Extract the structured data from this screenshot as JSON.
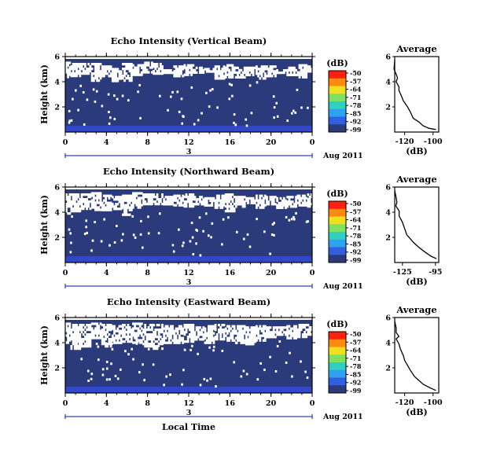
{
  "chart_data": [
    {
      "type": "heatmap",
      "title": "Echo Intensity (Vertical Beam)",
      "ylabel": "Height (km)",
      "yticks": [
        "2",
        "4",
        "6"
      ],
      "ylim": [
        0,
        6
      ],
      "xticks": [
        "0",
        "4",
        "8",
        "12",
        "16",
        "20",
        "0"
      ],
      "xlim": [
        0,
        24
      ],
      "day_label": "3",
      "date_label": "Aug 2011",
      "colorbar": {
        "unit": "(dB)",
        "ticks": [
          "-50",
          "-57",
          "-64",
          "-71",
          "-78",
          "-85",
          "-92",
          "-99"
        ]
      },
      "cloud_top_km": [
        5.6,
        5.5,
        5.5,
        5.5,
        5.3,
        5.1,
        5.5,
        5.4,
        5.6,
        5.5,
        5.0,
        5.3,
        5.4,
        5.2,
        5.1,
        5.3,
        5.4,
        5.2,
        5.2,
        5.3,
        5.3,
        5.0,
        5.2,
        5.4,
        5.3
      ],
      "cloud_base_km": [
        4.3,
        4.5,
        4.6,
        4.0,
        4.4,
        4.0,
        4.0,
        4.5,
        4.7,
        4.7,
        4.8,
        4.4,
        4.5,
        4.7,
        4.9,
        4.3,
        4.3,
        4.3,
        4.6,
        4.2,
        4.4,
        4.8,
        4.5,
        4.3,
        4.8
      ],
      "profile": {
        "title": "Average",
        "xlabel": "(dB)",
        "xticks": [
          "-120",
          "-100"
        ],
        "xlim": [
          -127,
          -96
        ],
        "yticks": [
          "2",
          "4",
          "6"
        ],
        "ylim": [
          0,
          6
        ],
        "points": [
          [
            -127,
            5.7
          ],
          [
            -127.5,
            5.0
          ],
          [
            -126,
            4.6
          ],
          [
            -125,
            4.3
          ],
          [
            -126,
            4.0
          ],
          [
            -124,
            3.6
          ],
          [
            -124,
            3.3
          ],
          [
            -122,
            2.8
          ],
          [
            -121,
            2.5
          ],
          [
            -118,
            2.0
          ],
          [
            -116,
            1.6
          ],
          [
            -114,
            1.1
          ],
          [
            -110,
            0.8
          ],
          [
            -107,
            0.5
          ],
          [
            -103,
            0.3
          ],
          [
            -98,
            0.2
          ]
        ]
      }
    },
    {
      "type": "heatmap",
      "title": "Echo Intensity (Northward Beam)",
      "ylabel": "Height (km)",
      "yticks": [
        "2",
        "4",
        "6"
      ],
      "ylim": [
        0,
        6
      ],
      "xticks": [
        "0",
        "4",
        "8",
        "12",
        "16",
        "20",
        "0"
      ],
      "xlim": [
        0,
        24
      ],
      "day_label": "3",
      "date_label": "Aug 2011",
      "colorbar": {
        "unit": "(dB)",
        "ticks": [
          "-50",
          "-57",
          "-64",
          "-71",
          "-78",
          "-85",
          "-92",
          "-99"
        ]
      },
      "cloud_top_km": [
        5.5,
        5.5,
        5.5,
        5.6,
        5.4,
        5.3,
        5.4,
        5.6,
        5.5,
        5.5,
        5.3,
        5.4,
        5.5,
        5.3,
        5.2,
        5.4,
        5.5,
        5.3,
        5.2,
        5.4,
        5.3,
        5.2,
        5.3,
        5.4,
        5.5
      ],
      "cloud_base_km": [
        3.9,
        4.0,
        4.2,
        4.2,
        4.1,
        4.2,
        3.8,
        4.3,
        4.7,
        4.6,
        4.6,
        4.5,
        4.5,
        4.7,
        4.6,
        4.3,
        4.0,
        4.4,
        4.8,
        4.3,
        4.7,
        4.3,
        4.5,
        4.6,
        4.4
      ],
      "profile": {
        "title": "Average",
        "xlabel": "(dB)",
        "xticks": [
          "-125",
          "-95"
        ],
        "xlim": [
          -132,
          -92
        ],
        "yticks": [
          "2",
          "4",
          "6"
        ],
        "ylim": [
          0,
          6
        ],
        "points": [
          [
            -132,
            5.7
          ],
          [
            -131,
            5.3
          ],
          [
            -130,
            4.8
          ],
          [
            -131,
            4.5
          ],
          [
            -128,
            4.1
          ],
          [
            -128,
            3.7
          ],
          [
            -125,
            3.2
          ],
          [
            -123,
            2.7
          ],
          [
            -121,
            2.2
          ],
          [
            -118,
            1.9
          ],
          [
            -115,
            1.6
          ],
          [
            -110,
            1.2
          ],
          [
            -104,
            0.8
          ],
          [
            -99,
            0.5
          ],
          [
            -94,
            0.3
          ]
        ]
      }
    },
    {
      "type": "heatmap",
      "title": "Echo Intensity (Eastward Beam)",
      "ylabel": "Height (km)",
      "yticks": [
        "2",
        "4",
        "6"
      ],
      "ylim": [
        0,
        6
      ],
      "xticks": [
        "0",
        "4",
        "8",
        "12",
        "16",
        "20",
        "0"
      ],
      "xlim": [
        0,
        24
      ],
      "day_label": "3",
      "date_label": "Aug 2011",
      "xlabel": "Local Time",
      "colorbar": {
        "unit": "(dB)",
        "ticks": [
          "-50",
          "-57",
          "-64",
          "-71",
          "-78",
          "-85",
          "-92",
          "-99"
        ]
      },
      "cloud_top_km": [
        5.6,
        5.5,
        5.5,
        5.6,
        5.5,
        5.4,
        5.5,
        5.6,
        5.5,
        5.5,
        5.4,
        5.4,
        5.5,
        5.3,
        5.4,
        5.5,
        5.4,
        5.4,
        5.3,
        5.4,
        5.3,
        5.3,
        5.4,
        5.5,
        5.5
      ],
      "cloud_base_km": [
        4.0,
        3.6,
        3.8,
        4.4,
        3.7,
        3.9,
        4.1,
        4.0,
        3.7,
        3.6,
        3.9,
        3.9,
        4.0,
        4.3,
        4.0,
        4.2,
        4.1,
        3.9,
        3.8,
        4.1,
        4.4,
        4.6,
        4.3,
        4.4,
        4.6
      ],
      "profile": {
        "title": "Average",
        "xlabel": "(dB)",
        "xticks": [
          "-120",
          "-100"
        ],
        "xlim": [
          -127,
          -96
        ],
        "yticks": [
          "2",
          "4",
          "6"
        ],
        "ylim": [
          0,
          6
        ],
        "points": [
          [
            -127,
            5.7
          ],
          [
            -126,
            5.2
          ],
          [
            -126,
            4.8
          ],
          [
            -124,
            4.5
          ],
          [
            -126,
            4.3
          ],
          [
            -124,
            3.9
          ],
          [
            -123,
            3.5
          ],
          [
            -121,
            3.0
          ],
          [
            -120,
            2.6
          ],
          [
            -118,
            2.2
          ],
          [
            -116,
            1.8
          ],
          [
            -113,
            1.3
          ],
          [
            -110,
            1.0
          ],
          [
            -107,
            0.7
          ],
          [
            -102,
            0.4
          ],
          [
            -98,
            0.2
          ]
        ]
      }
    }
  ],
  "colors": {
    "background_echo": "#2b3a7a",
    "near_surface_echo": "#3348c8",
    "colorbar": [
      "#ff2010",
      "#ff8a10",
      "#f0e020",
      "#80e060",
      "#30d0c0",
      "#30a0f0",
      "#3060e0",
      "#2b3a7a"
    ]
  }
}
